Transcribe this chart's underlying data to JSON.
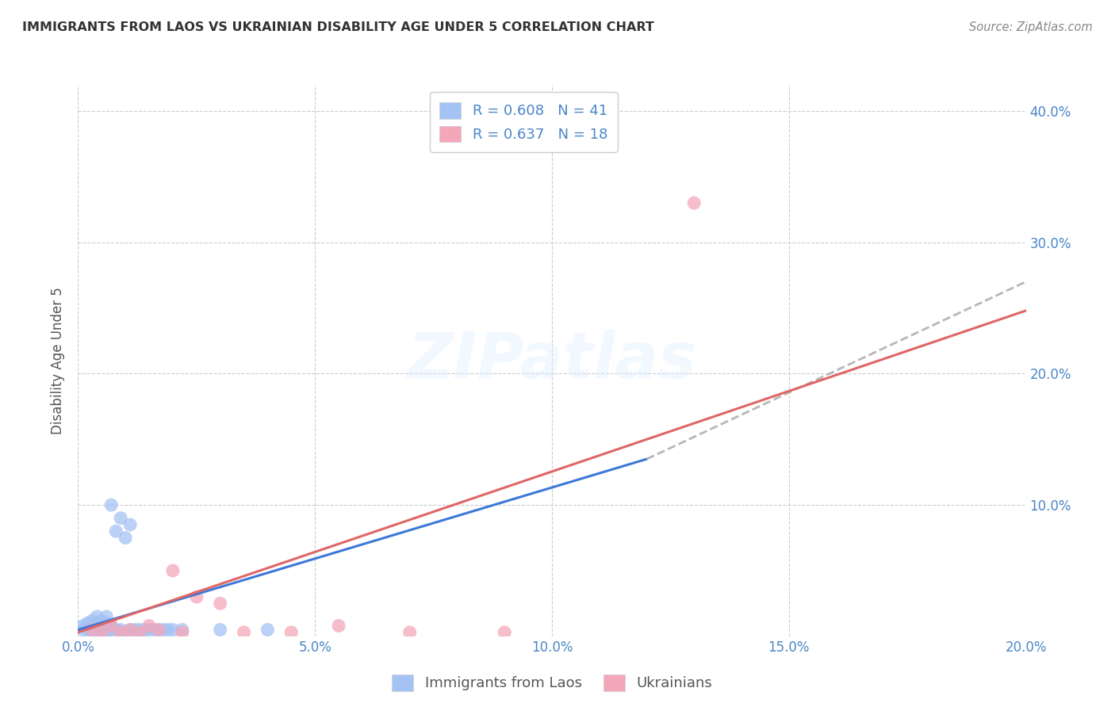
{
  "title": "IMMIGRANTS FROM LAOS VS UKRAINIAN DISABILITY AGE UNDER 5 CORRELATION CHART",
  "source": "Source: ZipAtlas.com",
  "ylabel": "Disability Age Under 5",
  "legend_label_1": "Immigrants from Laos",
  "legend_label_2": "Ukrainians",
  "legend_r1": "R = 0.608",
  "legend_n1": "N = 41",
  "legend_r2": "R = 0.637",
  "legend_n2": "N = 18",
  "color_blue": "#a4c2f4",
  "color_pink": "#f4a7b9",
  "color_blue_line": "#3c78d8",
  "color_pink_line": "#e06666",
  "color_dashed": "#b7b7b7",
  "color_axis_label": "#4a86c8",
  "xlim": [
    0.0,
    0.2
  ],
  "ylim": [
    0.0,
    0.42
  ],
  "xticks": [
    0.0,
    0.05,
    0.1,
    0.15,
    0.2
  ],
  "yticks": [
    0.0,
    0.1,
    0.2,
    0.3,
    0.4
  ],
  "xtick_labels": [
    "0.0%",
    "5.0%",
    "10.0%",
    "15.0%",
    "20.0%"
  ],
  "ytick_labels_right": [
    "",
    "10.0%",
    "20.0%",
    "30.0%",
    "40.0%"
  ],
  "blue_scatter_x": [
    0.001,
    0.001,
    0.002,
    0.002,
    0.003,
    0.003,
    0.003,
    0.004,
    0.004,
    0.004,
    0.005,
    0.005,
    0.005,
    0.005,
    0.006,
    0.006,
    0.006,
    0.006,
    0.007,
    0.007,
    0.007,
    0.008,
    0.008,
    0.009,
    0.009,
    0.01,
    0.01,
    0.011,
    0.011,
    0.012,
    0.013,
    0.014,
    0.015,
    0.016,
    0.017,
    0.018,
    0.019,
    0.02,
    0.022,
    0.03,
    0.04
  ],
  "blue_scatter_y": [
    0.005,
    0.008,
    0.005,
    0.01,
    0.003,
    0.007,
    0.012,
    0.005,
    0.01,
    0.015,
    0.003,
    0.005,
    0.008,
    0.012,
    0.003,
    0.006,
    0.01,
    0.015,
    0.005,
    0.008,
    0.1,
    0.005,
    0.08,
    0.005,
    0.09,
    0.003,
    0.075,
    0.005,
    0.085,
    0.005,
    0.005,
    0.005,
    0.005,
    0.005,
    0.005,
    0.005,
    0.005,
    0.005,
    0.005,
    0.005,
    0.005
  ],
  "pink_scatter_x": [
    0.003,
    0.005,
    0.007,
    0.009,
    0.011,
    0.013,
    0.015,
    0.017,
    0.02,
    0.022,
    0.025,
    0.03,
    0.035,
    0.045,
    0.055,
    0.07,
    0.09,
    0.13
  ],
  "pink_scatter_y": [
    0.005,
    0.003,
    0.008,
    0.003,
    0.005,
    0.003,
    0.008,
    0.005,
    0.05,
    0.003,
    0.03,
    0.025,
    0.003,
    0.003,
    0.008,
    0.003,
    0.003,
    0.33
  ],
  "blue_line_x": [
    0.0,
    0.12
  ],
  "blue_line_y": [
    0.005,
    0.135
  ],
  "dashed_line_x": [
    0.12,
    0.2
  ],
  "dashed_line_y": [
    0.135,
    0.27
  ],
  "pink_line_x": [
    0.0,
    0.2
  ],
  "pink_line_y": [
    0.003,
    0.248
  ],
  "background_color": "#ffffff",
  "grid_color": "#cccccc"
}
